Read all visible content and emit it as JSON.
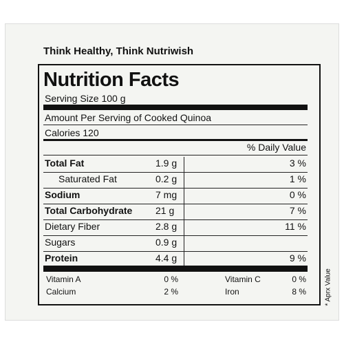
{
  "header": {
    "title": "Think Healthy, Think Nutriwish"
  },
  "label": {
    "title": "Nutrition Facts",
    "serving_size": "Serving Size 100 g",
    "amount_per_serving": "Amount Per Serving of Cooked Quinoa",
    "calories": "Calories 120",
    "daily_value_heading": "% Daily Value",
    "rows": [
      [
        "Total Fat",
        "1.9 g",
        "3 %"
      ],
      [
        "Saturated Fat",
        "0.2 g",
        "1 %"
      ],
      [
        "Sodium",
        "7 mg",
        "0 %"
      ],
      [
        "Total Carbohydrate",
        "21 g",
        "7 %"
      ],
      [
        "Dietary Fiber",
        "2.8 g",
        "11 %"
      ],
      [
        "Sugars",
        "0.9 g",
        null
      ],
      [
        "Protein",
        "4.4 g",
        "9 %"
      ]
    ],
    "vitamins": [
      [
        "Vitamin A",
        "0 %",
        "Vitamin C",
        "0 %"
      ],
      [
        "Calcium",
        "2 %",
        "Iron",
        "8 %"
      ]
    ],
    "footnote": "* Aprx Value"
  }
}
